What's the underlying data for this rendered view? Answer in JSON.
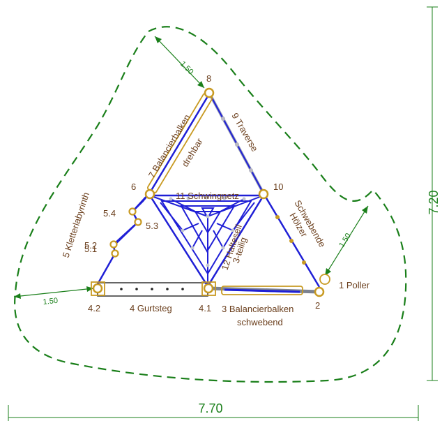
{
  "dimensions": {
    "width": "7.70",
    "height": "7.20",
    "clearance_top": "1.50",
    "clearance_left": "1.50",
    "clearance_right": "1.50"
  },
  "nodes": {
    "n8": "8",
    "n6": "6",
    "n10": "10",
    "n2": "2",
    "n4_1": "4.1",
    "n4_2": "4.2",
    "n5_1": "5.1",
    "n5_2": "5.2",
    "n5_3": "5.3",
    "n5_4": "5.4"
  },
  "elements": {
    "poller": "1 Poller",
    "balancier_schwebend_1": "3 Balancierbalken",
    "balancier_schwebend_2": "schwebend",
    "gurtsteg": "4 Gurtsteg",
    "kletterlabyrinth": "5 Kletterlabyrinth",
    "balancier_drehbar_1": "7 Balancierbalken",
    "balancier_drehbar_2": "drehbar",
    "traverse": "9 Traverse",
    "schwingnetz": "11 Schwingnetz",
    "halteseil_1": "12 Halteseil",
    "halteseil_2": "3-teilig",
    "hoelzer_1": "Schwebende",
    "hoelzer_2": "Hölzer"
  },
  "colors": {
    "rope": "#1f1fd6",
    "timber": "#c89a22",
    "dimension": "#1a7f1a",
    "text": "#6b3f1d"
  }
}
